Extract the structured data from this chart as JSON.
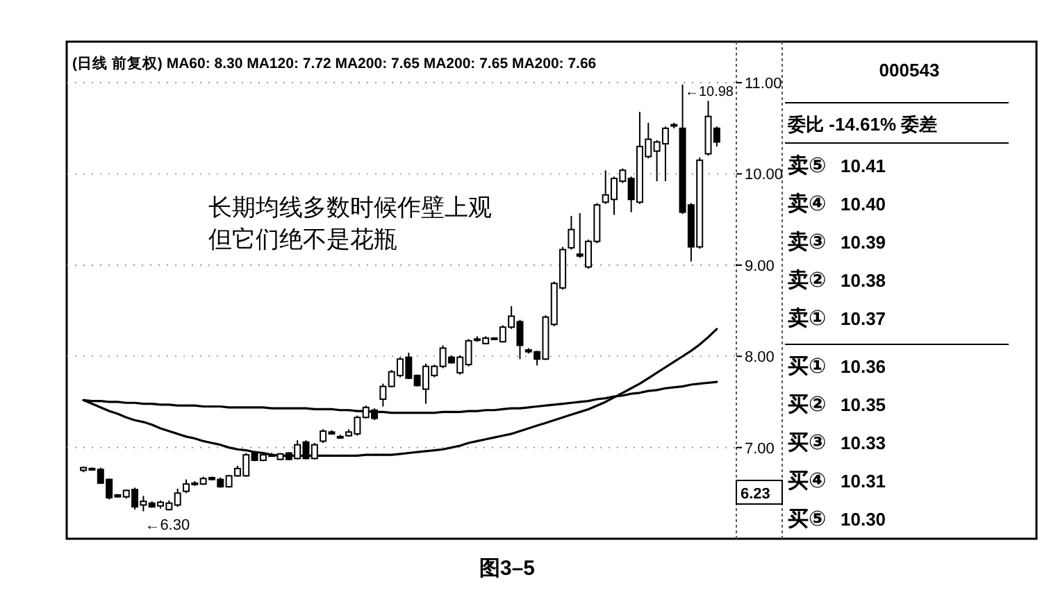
{
  "chart_data": {
    "type": "candlestick",
    "title": "(日线 前复权) MA60: 8.30 MA120: 7.72 MA200: 7.65 MA200: 7.65 MA200: 7.66",
    "categories": [
      null,
      null,
      null,
      null,
      null,
      null,
      null,
      null,
      null,
      null,
      null,
      null,
      null,
      null,
      null,
      null,
      null,
      null,
      null,
      null,
      null,
      null,
      null,
      null,
      null,
      null,
      null,
      null,
      null,
      null,
      null,
      null,
      null,
      null,
      null,
      null,
      null,
      null,
      null,
      null,
      null,
      null,
      null,
      null,
      null,
      null,
      null,
      null,
      null,
      null,
      null,
      null,
      null,
      null,
      null,
      null,
      null,
      null,
      null,
      null,
      null,
      null,
      null,
      null,
      null,
      null,
      null,
      null,
      null,
      null,
      null,
      null,
      null,
      null,
      null
    ],
    "ohlc": [
      [
        6.75,
        6.79,
        6.73,
        6.78
      ],
      [
        6.77,
        6.78,
        6.76,
        6.77
      ],
      [
        6.76,
        6.78,
        6.6,
        6.61
      ],
      [
        6.65,
        6.66,
        6.43,
        6.45
      ],
      [
        6.48,
        6.49,
        6.45,
        6.46
      ],
      [
        6.46,
        6.54,
        6.44,
        6.53
      ],
      [
        6.54,
        6.56,
        6.32,
        6.35
      ],
      [
        6.37,
        6.47,
        6.3,
        6.41
      ],
      [
        6.39,
        6.41,
        6.34,
        6.35
      ],
      [
        6.36,
        6.42,
        6.33,
        6.4
      ],
      [
        6.32,
        6.42,
        6.31,
        6.39
      ],
      [
        6.37,
        6.55,
        6.35,
        6.5
      ],
      [
        6.52,
        6.65,
        6.5,
        6.6
      ],
      [
        6.61,
        6.63,
        6.58,
        6.6
      ],
      [
        6.6,
        6.68,
        6.59,
        6.66
      ],
      [
        6.67,
        6.68,
        6.64,
        6.65
      ],
      [
        6.65,
        6.67,
        6.56,
        6.57
      ],
      [
        6.57,
        6.7,
        6.56,
        6.69
      ],
      [
        6.69,
        6.8,
        6.68,
        6.77
      ],
      [
        6.69,
        6.94,
        6.68,
        6.92
      ],
      [
        6.94,
        6.96,
        6.85,
        6.86
      ],
      [
        6.86,
        6.93,
        6.85,
        6.92
      ],
      [
        6.92,
        6.94,
        6.9,
        6.91
      ],
      [
        6.87,
        6.94,
        6.86,
        6.93
      ],
      [
        6.94,
        6.95,
        6.86,
        6.87
      ],
      [
        6.88,
        7.08,
        6.87,
        7.03
      ],
      [
        7.06,
        7.08,
        6.87,
        6.88
      ],
      [
        6.88,
        7.05,
        6.87,
        7.03
      ],
      [
        7.07,
        7.2,
        7.05,
        7.18
      ],
      [
        7.17,
        7.19,
        7.14,
        7.15
      ],
      [
        7.12,
        7.14,
        7.1,
        7.11
      ],
      [
        7.13,
        7.2,
        7.12,
        7.17
      ],
      [
        7.15,
        7.35,
        7.13,
        7.33
      ],
      [
        7.33,
        7.46,
        7.32,
        7.44
      ],
      [
        7.41,
        7.43,
        7.3,
        7.32
      ],
      [
        7.53,
        7.7,
        7.45,
        7.67
      ],
      [
        7.67,
        7.85,
        7.66,
        7.83
      ],
      [
        7.79,
        7.99,
        7.77,
        7.97
      ],
      [
        7.99,
        8.04,
        7.75,
        7.76
      ],
      [
        7.79,
        7.8,
        7.67,
        7.68
      ],
      [
        7.64,
        7.92,
        7.48,
        7.89
      ],
      [
        7.79,
        7.91,
        7.77,
        7.89
      ],
      [
        7.89,
        8.12,
        7.87,
        8.09
      ],
      [
        7.99,
        8.01,
        7.92,
        7.93
      ],
      [
        7.82,
        8.01,
        7.8,
        7.99
      ],
      [
        7.91,
        8.19,
        7.89,
        8.17
      ],
      [
        8.19,
        8.22,
        8.16,
        8.18
      ],
      [
        8.14,
        8.22,
        8.13,
        8.2
      ],
      [
        8.2,
        8.21,
        8.19,
        8.2
      ],
      [
        8.16,
        8.34,
        8.15,
        8.32
      ],
      [
        8.32,
        8.55,
        8.3,
        8.44
      ],
      [
        8.38,
        8.4,
        7.97,
        8.12
      ],
      [
        8.07,
        8.09,
        8.03,
        8.05
      ],
      [
        8.05,
        8.06,
        7.9,
        7.97
      ],
      [
        7.97,
        8.45,
        7.96,
        8.43
      ],
      [
        8.35,
        8.82,
        8.33,
        8.8
      ],
      [
        8.75,
        9.2,
        8.73,
        9.17
      ],
      [
        9.19,
        9.54,
        9.17,
        9.39
      ],
      [
        9.12,
        9.57,
        9.08,
        9.1
      ],
      [
        8.98,
        9.28,
        8.96,
        9.26
      ],
      [
        9.26,
        9.68,
        9.24,
        9.66
      ],
      [
        9.69,
        10.04,
        9.67,
        9.77
      ],
      [
        9.72,
        9.97,
        9.55,
        9.95
      ],
      [
        9.92,
        10.06,
        9.9,
        10.04
      ],
      [
        9.95,
        9.97,
        9.58,
        9.72
      ],
      [
        9.69,
        10.68,
        9.67,
        10.3
      ],
      [
        10.19,
        10.56,
        10.17,
        10.38
      ],
      [
        10.25,
        10.37,
        9.92,
        10.35
      ],
      [
        10.33,
        10.52,
        9.92,
        10.5
      ],
      [
        10.54,
        10.56,
        10.5,
        10.53
      ],
      [
        10.5,
        10.98,
        9.56,
        9.58
      ],
      [
        9.66,
        9.68,
        9.04,
        9.2
      ],
      [
        9.2,
        10.18,
        9.18,
        10.15
      ],
      [
        10.22,
        10.8,
        10.2,
        10.63
      ],
      [
        10.5,
        10.52,
        10.3,
        10.35
      ]
    ],
    "series": [
      {
        "type": "line",
        "color": "#000000",
        "values": [
          7.52,
          7.48,
          7.44,
          7.4,
          7.37,
          7.33,
          7.3,
          7.28,
          7.25,
          7.21,
          7.18,
          7.15,
          7.12,
          7.1,
          7.07,
          7.05,
          7.03,
          7.0,
          6.98,
          6.97,
          6.95,
          6.94,
          6.92,
          6.91,
          6.91,
          6.91,
          6.91,
          6.91,
          6.91,
          6.91,
          6.91,
          6.91,
          6.91,
          6.92,
          6.92,
          6.92,
          6.92,
          6.93,
          6.94,
          6.95,
          6.96,
          6.97,
          6.98,
          7.0,
          7.02,
          7.05,
          7.07,
          7.09,
          7.11,
          7.13,
          7.15,
          7.18,
          7.21,
          7.24,
          7.27,
          7.3,
          7.33,
          7.36,
          7.39,
          7.42,
          7.46,
          7.5,
          7.55,
          7.6,
          7.65,
          7.7,
          7.76,
          7.82,
          7.88,
          7.94,
          8.0,
          8.06,
          8.13,
          8.21,
          8.3
        ]
      },
      {
        "type": "line",
        "color": "#000000",
        "values": [
          7.52,
          7.51,
          7.51,
          7.5,
          7.5,
          7.49,
          7.49,
          7.48,
          7.48,
          7.47,
          7.47,
          7.46,
          7.46,
          7.46,
          7.45,
          7.45,
          7.45,
          7.44,
          7.44,
          7.44,
          7.44,
          7.44,
          7.43,
          7.43,
          7.43,
          7.43,
          7.43,
          7.42,
          7.42,
          7.42,
          7.41,
          7.41,
          7.4,
          7.4,
          7.39,
          7.39,
          7.38,
          7.38,
          7.38,
          7.38,
          7.38,
          7.38,
          7.39,
          7.39,
          7.39,
          7.4,
          7.4,
          7.41,
          7.41,
          7.42,
          7.43,
          7.43,
          7.44,
          7.45,
          7.46,
          7.47,
          7.48,
          7.49,
          7.5,
          7.51,
          7.53,
          7.54,
          7.56,
          7.57,
          7.59,
          7.6,
          7.62,
          7.63,
          7.65,
          7.66,
          7.67,
          7.69,
          7.7,
          7.71,
          7.72
        ]
      }
    ],
    "ylim": [
      6.0,
      11.45
    ],
    "yticks": [
      {
        "value": 7,
        "label": "7.00"
      },
      {
        "value": 8,
        "label": "8.00"
      },
      {
        "value": 9,
        "label": "9.00"
      },
      {
        "value": 10,
        "label": "10.00"
      },
      {
        "value": 11,
        "label": "11.00"
      }
    ],
    "grid": "y",
    "annotations": [
      "长期均线多数时候作壁上观",
      "但它们绝不是花瓶",
      "6.23",
      "图3–5",
      "←10.98",
      {
        "text": "←6.30",
        "y": 6.3
      },
      "000543",
      "委比 -14.61% 委差",
      "卖⑤ 10.41",
      "卖④ 10.40",
      "卖③ 10.39",
      "卖② 10.38",
      "卖① 10.37",
      "买① 10.36",
      "买② 10.35",
      "买③ 10.33",
      "买④ 10.31",
      "买⑤ 10.30"
    ]
  }
}
